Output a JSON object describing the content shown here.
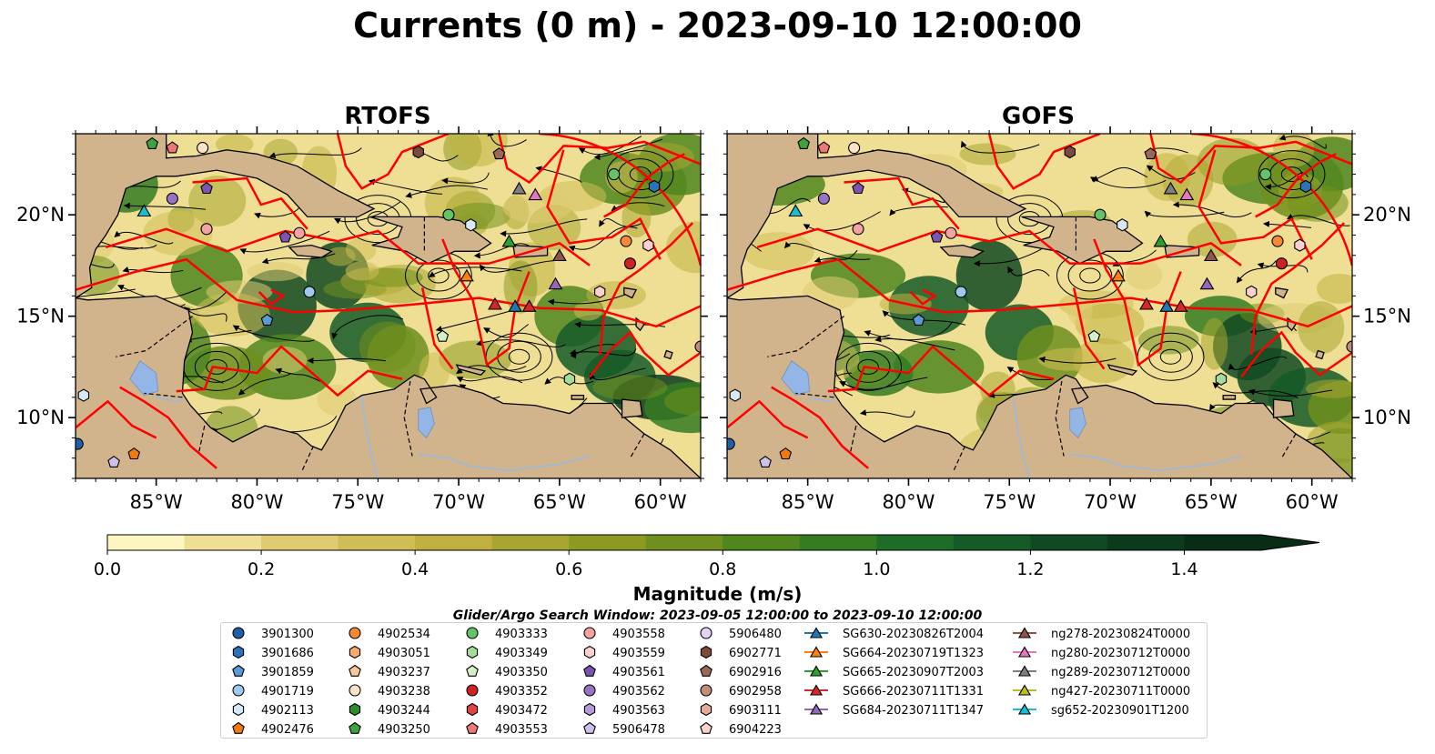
{
  "title": "Currents (0 m) - 2023-09-10 12:00:00",
  "panels": [
    {
      "name": "RTOFS"
    },
    {
      "name": "GOFS"
    }
  ],
  "lat_ticks": [
    "20°N",
    "15°N",
    "10°N"
  ],
  "lon_ticks": [
    "85°W",
    "80°W",
    "75°W",
    "70°W",
    "65°W",
    "60°W"
  ],
  "extent": {
    "lon": [
      -89,
      -58
    ],
    "lat": [
      7,
      24
    ]
  },
  "colorbar": {
    "label": "Magnitude (m/s)",
    "ticks": [
      "0.0",
      "0.2",
      "0.4",
      "0.6",
      "0.8",
      "1.0",
      "1.2",
      "1.4"
    ],
    "range": [
      0,
      1.5
    ],
    "colors": [
      "#fdf6c0",
      "#efdf95",
      "#dfcb72",
      "#cfbd55",
      "#bfb040",
      "#a8a630",
      "#8c9a22",
      "#6f8f1e",
      "#4f861e",
      "#347b22",
      "#1f6b28",
      "#155a27",
      "#104a22",
      "#0c3a1c",
      "#092c16"
    ],
    "extend": "max"
  },
  "search_window": "Glider/Argo Search Window: 2023-09-05 12:00:00 to 2023-09-10 12:00:00",
  "legend": [
    [
      {
        "label": "3901300",
        "marker": "circle",
        "color": "#1f5fa8"
      },
      {
        "label": "3901686",
        "marker": "hexagon",
        "color": "#2b73b8"
      },
      {
        "label": "3901859",
        "marker": "pentagon",
        "color": "#5a9bd5"
      },
      {
        "label": "4901719",
        "marker": "circle",
        "color": "#9ec8ec"
      },
      {
        "label": "4902113",
        "marker": "hexagon",
        "color": "#d7e9f7"
      },
      {
        "label": "4902476",
        "marker": "pentagon",
        "color": "#f07a10"
      }
    ],
    [
      {
        "label": "4902534",
        "marker": "circle",
        "color": "#f58a32"
      },
      {
        "label": "4903051",
        "marker": "hexagon",
        "color": "#f7aa6c"
      },
      {
        "label": "4903237",
        "marker": "pentagon",
        "color": "#f9c79c"
      },
      {
        "label": "4903238",
        "marker": "circle",
        "color": "#fde4c8"
      },
      {
        "label": "4903244",
        "marker": "hexagon",
        "color": "#2e8b2e"
      },
      {
        "label": "4903250",
        "marker": "pentagon",
        "color": "#3fa23f"
      }
    ],
    [
      {
        "label": "4903333",
        "marker": "circle",
        "color": "#66c266"
      },
      {
        "label": "4903349",
        "marker": "hexagon",
        "color": "#a4dc9a"
      },
      {
        "label": "4903350",
        "marker": "pentagon",
        "color": "#d3f0cb"
      },
      {
        "label": "4903352",
        "marker": "circle",
        "color": "#cc2222"
      },
      {
        "label": "4903472",
        "marker": "hexagon",
        "color": "#dd4444"
      },
      {
        "label": "4903553",
        "marker": "pentagon",
        "color": "#ee7777"
      }
    ],
    [
      {
        "label": "4903558",
        "marker": "circle",
        "color": "#f4a3a3"
      },
      {
        "label": "4903559",
        "marker": "hexagon",
        "color": "#fbd0d0"
      },
      {
        "label": "4903561",
        "marker": "pentagon",
        "color": "#7b55b0"
      },
      {
        "label": "4903562",
        "marker": "circle",
        "color": "#9673c5"
      },
      {
        "label": "4903563",
        "marker": "hexagon",
        "color": "#b49ad6"
      },
      {
        "label": "5906478",
        "marker": "pentagon",
        "color": "#cfc0ea"
      }
    ],
    [
      {
        "label": "5906480",
        "marker": "circle",
        "color": "#e2d4f3"
      },
      {
        "label": "6902771",
        "marker": "hexagon",
        "color": "#7a4a3a"
      },
      {
        "label": "6902916",
        "marker": "pentagon",
        "color": "#9a6a58"
      },
      {
        "label": "6902958",
        "marker": "circle",
        "color": "#c08f7c"
      },
      {
        "label": "6903111",
        "marker": "hexagon",
        "color": "#e3ac9a"
      },
      {
        "label": "6904223",
        "marker": "pentagon",
        "color": "#f8d3c8"
      }
    ],
    [
      {
        "label": "SG630-20230826T2004",
        "marker": "triangle",
        "color": "#1f77b4"
      },
      {
        "label": "SG664-20230719T1323",
        "marker": "triangle",
        "color": "#ff7f0e"
      },
      {
        "label": "SG665-20230907T2003",
        "marker": "triangle",
        "color": "#2ca02c"
      },
      {
        "label": "SG666-20230711T1331",
        "marker": "triangle",
        "color": "#d62728"
      },
      {
        "label": "SG684-20230711T1347",
        "marker": "triangle",
        "color": "#9467bd"
      }
    ],
    [
      {
        "label": "ng278-20230824T0000",
        "marker": "triangle",
        "color": "#8c564b"
      },
      {
        "label": "ng280-20230712T0000",
        "marker": "triangle",
        "color": "#e377c2"
      },
      {
        "label": "ng289-20230712T0000",
        "marker": "triangle",
        "color": "#7f7f7f"
      },
      {
        "label": "ng427-20230711T0000",
        "marker": "triangle",
        "color": "#bcbd22"
      },
      {
        "label": "sg652-20230901T1200",
        "marker": "triangle",
        "color": "#17becf"
      }
    ]
  ],
  "map_colors": {
    "land": "#d2b48c",
    "lake": "#94b6e6",
    "river": "#9fb8d8",
    "tracks": "#ff0000",
    "stream": "#000000"
  },
  "observations": [
    {
      "lon": -88.9,
      "lat": 8.7,
      "ref": [
        0,
        0
      ]
    },
    {
      "lon": -85.2,
      "lat": 23.5,
      "ref": [
        1,
        5
      ]
    },
    {
      "lon": -84.2,
      "lat": 23.3,
      "ref": [
        2,
        5
      ]
    },
    {
      "lon": -82.7,
      "lat": 23.3,
      "ref": [
        1,
        3
      ]
    },
    {
      "lon": -84.2,
      "lat": 20.8,
      "ref": [
        3,
        3
      ]
    },
    {
      "lon": -82.5,
      "lat": 21.3,
      "ref": [
        3,
        2
      ]
    },
    {
      "lon": -82.5,
      "lat": 19.3,
      "ref": [
        3,
        0
      ]
    },
    {
      "lon": -78.6,
      "lat": 18.9,
      "ref": [
        3,
        2
      ]
    },
    {
      "lon": -77.9,
      "lat": 19.1,
      "ref": [
        3,
        0
      ]
    },
    {
      "lon": -77.4,
      "lat": 16.2,
      "ref": [
        0,
        3
      ]
    },
    {
      "lon": -79.5,
      "lat": 14.8,
      "ref": [
        0,
        2
      ]
    },
    {
      "lon": -72.0,
      "lat": 23.1,
      "ref": [
        4,
        1
      ]
    },
    {
      "lon": -70.5,
      "lat": 20.0,
      "ref": [
        2,
        0
      ]
    },
    {
      "lon": -69.4,
      "lat": 19.5,
      "ref": [
        0,
        4
      ]
    },
    {
      "lon": -68.0,
      "lat": 23.0,
      "ref": [
        4,
        2
      ]
    },
    {
      "lon": -62.3,
      "lat": 22.0,
      "ref": [
        2,
        0
      ]
    },
    {
      "lon": -60.3,
      "lat": 21.4,
      "ref": [
        0,
        1
      ]
    },
    {
      "lon": -61.7,
      "lat": 18.7,
      "ref": [
        1,
        0
      ]
    },
    {
      "lon": -60.6,
      "lat": 18.5,
      "ref": [
        3,
        1
      ]
    },
    {
      "lon": -61.5,
      "lat": 17.6,
      "ref": [
        2,
        3
      ]
    },
    {
      "lon": -63.0,
      "lat": 16.2,
      "ref": [
        3,
        1
      ]
    },
    {
      "lon": -58.0,
      "lat": 13.5,
      "ref": [
        4,
        3
      ]
    },
    {
      "lon": -70.8,
      "lat": 14.0,
      "ref": [
        2,
        2
      ]
    },
    {
      "lon": -64.5,
      "lat": 11.9,
      "ref": [
        2,
        1
      ]
    },
    {
      "lon": -88.6,
      "lat": 11.1,
      "ref": [
        0,
        4
      ]
    },
    {
      "lon": -86.1,
      "lat": 8.2,
      "ref": [
        0,
        5
      ]
    },
    {
      "lon": -87.1,
      "lat": 7.8,
      "ref": [
        3,
        5
      ]
    }
  ],
  "gliders": [
    {
      "lon": -85.6,
      "lat": 20.2,
      "ref": [
        6,
        4
      ]
    },
    {
      "lon": -67.0,
      "lat": 21.3,
      "ref": [
        6,
        2
      ]
    },
    {
      "lon": -66.2,
      "lat": 21.0,
      "ref": [
        6,
        1
      ]
    },
    {
      "lon": -67.5,
      "lat": 18.7,
      "ref": [
        5,
        2
      ]
    },
    {
      "lon": -65.0,
      "lat": 18.0,
      "ref": [
        6,
        0
      ]
    },
    {
      "lon": -69.6,
      "lat": 17.0,
      "ref": [
        5,
        1
      ]
    },
    {
      "lon": -68.2,
      "lat": 15.6,
      "ref": [
        5,
        3
      ]
    },
    {
      "lon": -67.2,
      "lat": 15.5,
      "ref": [
        5,
        0
      ]
    },
    {
      "lon": -66.5,
      "lat": 15.5,
      "ref": [
        5,
        3
      ]
    },
    {
      "lon": -65.2,
      "lat": 16.6,
      "ref": [
        5,
        4
      ]
    }
  ]
}
